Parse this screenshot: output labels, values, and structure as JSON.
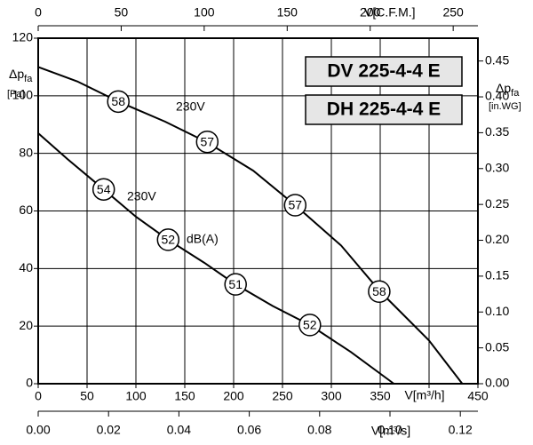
{
  "chart_data": {
    "type": "line",
    "xlim": [
      0,
      450
    ],
    "xticks": [
      0,
      50,
      100,
      150,
      200,
      250,
      300,
      350,
      {
        "value": 400,
        "label": null
      },
      450
    ],
    "x_label": "V[m³/h]",
    "ylim": [
      0,
      120
    ],
    "yticks": [
      0,
      20,
      40,
      60,
      80,
      100,
      120
    ],
    "y_label": {
      "symbol": "Δp",
      "sub": "fa",
      "unit": "[Pa]"
    },
    "y2lim": [
      0,
      0.4818
    ],
    "y2ticks": [
      {
        "value": 0,
        "label": "0.00"
      },
      {
        "value": 0.05,
        "label": "0.05"
      },
      {
        "value": 0.1,
        "label": "0.10"
      },
      {
        "value": 0.15,
        "label": "0.15"
      },
      {
        "value": 0.2,
        "label": "0.20"
      },
      {
        "value": 0.25,
        "label": "0.25"
      },
      {
        "value": 0.3,
        "label": "0.30"
      },
      {
        "value": 0.35,
        "label": "0.35"
      },
      {
        "value": 0.4,
        "label": "0.40"
      },
      {
        "value": 0.45,
        "label": "0.45"
      }
    ],
    "y2_label": {
      "symbol": "Δp",
      "sub": "fa",
      "unit": "[in.WG]"
    },
    "x2lim": [
      0,
      264.9
    ],
    "x2ticks": [
      0,
      50,
      100,
      150,
      200,
      250
    ],
    "x2_label": "V[C.F.M.]",
    "x3lim": [
      0,
      0.125
    ],
    "x3ticks": [
      {
        "value": 0,
        "label": "0.00"
      },
      {
        "value": 0.02,
        "label": "0.02"
      },
      {
        "value": 0.04,
        "label": "0.04"
      },
      {
        "value": 0.06,
        "label": "0.06"
      },
      {
        "value": 0.08,
        "label": "0.08"
      },
      {
        "value": 0.1,
        "label": "0.10"
      },
      {
        "value": 0.12,
        "label": "0.12"
      }
    ],
    "x3_label": "V[m³/s]",
    "grid": true,
    "models": [
      "DV 225-4-4 E",
      "DH 225-4-4 E"
    ],
    "series": [
      {
        "name": "230V",
        "color": "#000000",
        "x": [
          0,
          40,
          82,
          130,
          172,
          220,
          263,
          310,
          350,
          400,
          434
        ],
        "values": [
          110,
          105,
          98,
          91,
          84,
          74,
          62,
          48,
          32,
          15,
          0
        ],
        "markers": [
          {
            "x": 82,
            "y": 98,
            "label": 58
          },
          {
            "x": 173,
            "y": 84,
            "label": 57
          },
          {
            "x": 263,
            "y": 62,
            "label": 57
          },
          {
            "x": 349,
            "y": 32,
            "label": 58
          }
        ]
      },
      {
        "name": "230V",
        "color": "#000000",
        "x": [
          0,
          30,
          67,
          100,
          133,
          170,
          202,
          240,
          278,
          320,
          364
        ],
        "values": [
          87,
          78,
          67.5,
          58,
          50,
          42,
          34.5,
          27,
          20.4,
          11,
          0
        ],
        "markers": [
          {
            "x": 67,
            "y": 67.5,
            "label": 54
          },
          {
            "x": 133,
            "y": 50,
            "label": 52
          },
          {
            "x": 202,
            "y": 34.5,
            "label": 51
          },
          {
            "x": 278,
            "y": 20.4,
            "label": 52
          }
        ]
      }
    ],
    "marker_unit": "dB(A)"
  }
}
